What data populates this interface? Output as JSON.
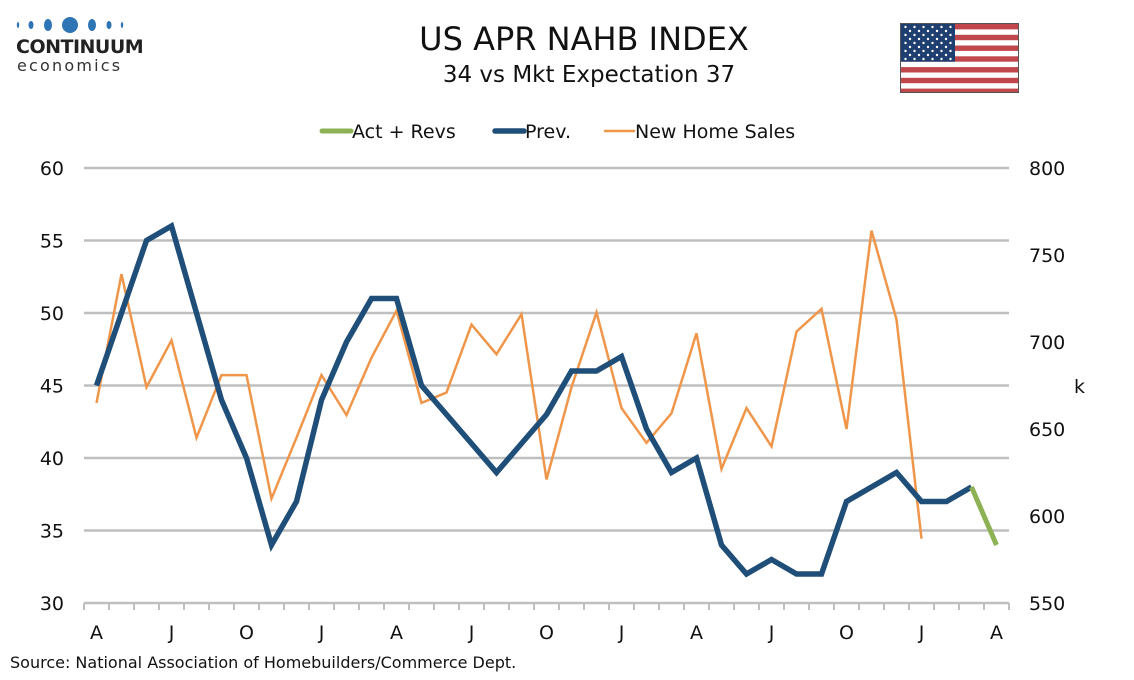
{
  "header": {
    "brand_name": "CONTINUUM",
    "brand_sub": "economics",
    "title": "US APR NAHB INDEX",
    "subtitle": "34 vs Mkt Expectation 37",
    "flag_icon": "us-flag-icon"
  },
  "footer": {
    "source": "Source: National Association of Homebuilders/Commerce Dept."
  },
  "colors": {
    "act": "#8DB255",
    "prev": "#1F4E79",
    "sales": "#F0964A",
    "grid": "#BFBFBF",
    "logo": "#2E75B6"
  },
  "chart_data": {
    "type": "line",
    "title": "US APR NAHB INDEX",
    "subtitle": "34 vs Mkt Expectation 37",
    "xlabel": "",
    "ylabel": "",
    "y2label": "k",
    "x_tick_labels": [
      "A",
      "J",
      "O",
      "J",
      "A",
      "J",
      "O",
      "J",
      "A",
      "J",
      "O",
      "J",
      "A"
    ],
    "x_tick_every": 3,
    "categories": [
      "Apr",
      "May",
      "Jun",
      "Jul",
      "Aug",
      "Sep",
      "Oct",
      "Nov",
      "Dec",
      "Jan",
      "Feb",
      "Mar",
      "Apr",
      "May",
      "Jun",
      "Jul",
      "Aug",
      "Sep",
      "Oct",
      "Nov",
      "Dec",
      "Jan",
      "Feb",
      "Mar",
      "Apr",
      "May",
      "Jun",
      "Jul",
      "Aug",
      "Sep",
      "Oct",
      "Nov",
      "Dec",
      "Jan",
      "Feb",
      "Mar",
      "Apr"
    ],
    "ylim": [
      30,
      60
    ],
    "yticks": [
      30,
      35,
      40,
      45,
      50,
      55,
      60
    ],
    "y2lim": [
      550,
      800
    ],
    "y2ticks": [
      550,
      600,
      650,
      700,
      750,
      800
    ],
    "grid": true,
    "legend_position": "top-center",
    "series": [
      {
        "name": "Act + Revs",
        "axis": "left",
        "color": "#8DB255",
        "values": [
          null,
          null,
          null,
          null,
          null,
          null,
          null,
          null,
          null,
          null,
          null,
          null,
          null,
          null,
          null,
          null,
          null,
          null,
          null,
          null,
          null,
          null,
          null,
          null,
          null,
          null,
          null,
          null,
          null,
          null,
          null,
          null,
          null,
          null,
          null,
          38,
          34
        ]
      },
      {
        "name": "Prev.",
        "axis": "left",
        "color": "#1F4E79",
        "values": [
          45,
          50,
          55,
          56,
          50,
          44,
          40,
          34,
          37,
          44,
          48,
          51,
          51,
          45,
          43,
          41,
          39,
          41,
          43,
          46,
          46,
          47,
          42,
          39,
          40,
          34,
          32,
          33,
          32,
          32,
          37,
          38,
          39,
          37,
          37,
          38,
          null
        ]
      },
      {
        "name": "New Home Sales",
        "axis": "right",
        "color": "#F0964A",
        "values": [
          665,
          739,
          674,
          701,
          645,
          681,
          681,
          610,
          645,
          681,
          658,
          691,
          718,
          665,
          671,
          710,
          693,
          716,
          621,
          674,
          717,
          662,
          642,
          659,
          705,
          627,
          662,
          640,
          706,
          719,
          650,
          764,
          713,
          587,
          null,
          null,
          null
        ]
      }
    ]
  }
}
